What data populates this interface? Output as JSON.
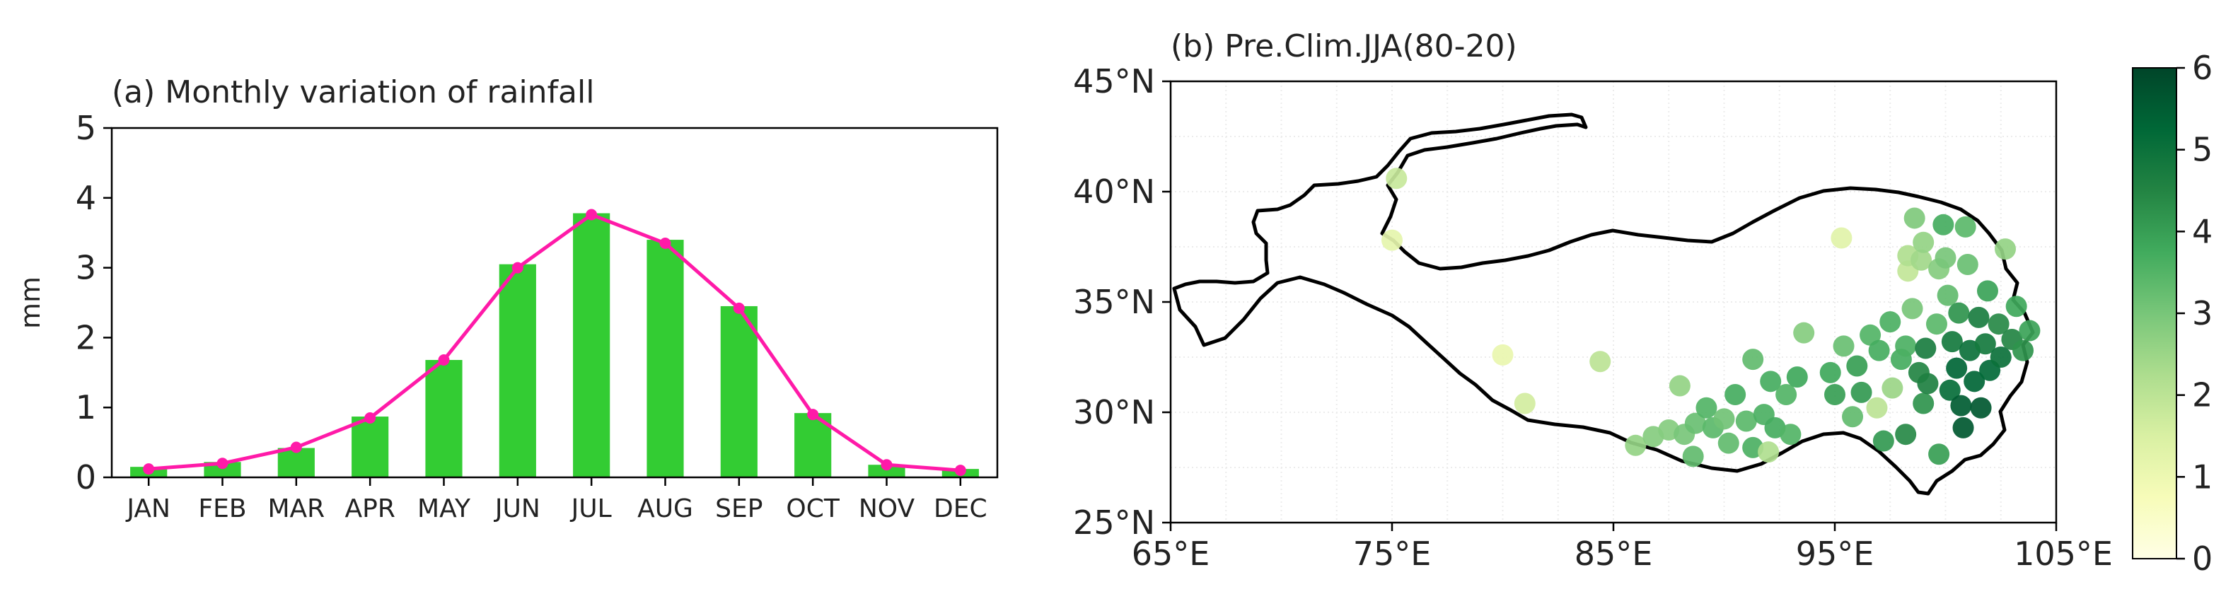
{
  "chart_data": [
    {
      "type": "bar",
      "title": "(a) Monthly variation of rainfall",
      "xlabel": "",
      "ylabel": "mm",
      "ylim": [
        0,
        5
      ],
      "yticks": [
        "0",
        "1",
        "2",
        "3",
        "4",
        "5"
      ],
      "categories": [
        "JAN",
        "FEB",
        "MAR",
        "APR",
        "MAY",
        "JUN",
        "JUL",
        "AUG",
        "SEP",
        "OCT",
        "NOV",
        "DEC"
      ],
      "series": [
        {
          "values": [
            0.15,
            0.22,
            0.42,
            0.87,
            1.68,
            3.05,
            3.78,
            3.4,
            2.45,
            0.92,
            0.18,
            0.12
          ],
          "color": "#33cc33",
          "kind": "bar"
        },
        {
          "values": [
            0.12,
            0.2,
            0.43,
            0.85,
            1.68,
            3.0,
            3.76,
            3.35,
            2.42,
            0.9,
            0.18,
            0.1
          ],
          "color": "#ff1aa8",
          "kind": "line"
        }
      ],
      "grid": false
    },
    {
      "type": "scatter",
      "title": "(b) Pre.Clim.JJA(80-20)",
      "xlim": [
        65,
        105
      ],
      "ylim": [
        25,
        45
      ],
      "xticks": [
        "65°E",
        "75°E",
        "85°E",
        "95°E",
        "105°E"
      ],
      "yticks": [
        "25°N",
        "30°N",
        "35°N",
        "40°N",
        "45°N"
      ],
      "colorbar": {
        "min": 0,
        "max": 6,
        "ticks": [
          "0",
          "1",
          "2",
          "3",
          "4",
          "5",
          "6"
        ],
        "colormap": "YlGn"
      },
      "grid": true,
      "points": [
        [
          75.2,
          40.6,
          1.8
        ],
        [
          75.0,
          37.8,
          1.2
        ],
        [
          80.0,
          32.6,
          1.1
        ],
        [
          81.0,
          30.4,
          1.6
        ],
        [
          84.4,
          32.3,
          2.0
        ],
        [
          86.0,
          28.5,
          2.6
        ],
        [
          86.8,
          28.9,
          2.8
        ],
        [
          87.5,
          29.2,
          2.8
        ],
        [
          88.2,
          29.0,
          3.0
        ],
        [
          88.0,
          31.2,
          2.6
        ],
        [
          88.7,
          29.5,
          3.2
        ],
        [
          88.6,
          28.0,
          3.3
        ],
        [
          89.2,
          30.2,
          3.5
        ],
        [
          89.5,
          29.3,
          3.4
        ],
        [
          90.0,
          29.7,
          3.1
        ],
        [
          90.2,
          28.6,
          3.3
        ],
        [
          90.5,
          30.8,
          3.7
        ],
        [
          91.0,
          29.6,
          3.4
        ],
        [
          91.3,
          32.4,
          3.3
        ],
        [
          91.3,
          28.4,
          3.6
        ],
        [
          91.8,
          29.9,
          3.6
        ],
        [
          92.0,
          28.2,
          2.2
        ],
        [
          92.1,
          31.4,
          3.7
        ],
        [
          92.3,
          29.3,
          3.7
        ],
        [
          92.8,
          30.8,
          3.5
        ],
        [
          93.0,
          29.0,
          3.5
        ],
        [
          93.3,
          31.6,
          3.8
        ],
        [
          93.6,
          33.6,
          2.8
        ],
        [
          94.8,
          31.8,
          3.8
        ],
        [
          95.0,
          30.8,
          4.0
        ],
        [
          95.4,
          33.0,
          3.2
        ],
        [
          95.3,
          37.9,
          1.3
        ],
        [
          95.8,
          29.8,
          3.3
        ],
        [
          96.0,
          32.1,
          4.0
        ],
        [
          96.2,
          30.9,
          4.1
        ],
        [
          96.6,
          33.5,
          3.5
        ],
        [
          96.9,
          30.2,
          2.0
        ],
        [
          97.0,
          32.8,
          3.7
        ],
        [
          97.2,
          28.7,
          4.1
        ],
        [
          97.6,
          31.1,
          2.5
        ],
        [
          97.5,
          34.1,
          3.6
        ],
        [
          98.0,
          32.4,
          3.7
        ],
        [
          98.2,
          29.0,
          4.4
        ],
        [
          98.2,
          33.0,
          3.6
        ],
        [
          98.3,
          36.4,
          1.9
        ],
        [
          98.3,
          37.1,
          2.2
        ],
        [
          98.5,
          34.7,
          3.0
        ],
        [
          98.6,
          38.8,
          2.9
        ],
        [
          98.8,
          31.8,
          4.5
        ],
        [
          98.9,
          36.9,
          2.4
        ],
        [
          99.0,
          30.4,
          4.2
        ],
        [
          99.1,
          32.9,
          4.7
        ],
        [
          99.2,
          31.3,
          4.6
        ],
        [
          99.6,
          34.0,
          3.4
        ],
        [
          99.7,
          28.1,
          4.0
        ],
        [
          99.7,
          36.5,
          2.8
        ],
        [
          99.9,
          38.5,
          3.7
        ],
        [
          100.1,
          35.3,
          3.3
        ],
        [
          100.2,
          31.0,
          5.1
        ],
        [
          100.3,
          33.2,
          4.8
        ],
        [
          100.5,
          32.0,
          5.3
        ],
        [
          100.6,
          34.5,
          4.2
        ],
        [
          100.7,
          30.3,
          5.5
        ],
        [
          100.8,
          29.3,
          5.6
        ],
        [
          101.0,
          36.7,
          3.2
        ],
        [
          101.1,
          32.8,
          5.0
        ],
        [
          101.3,
          31.4,
          5.3
        ],
        [
          101.5,
          34.3,
          4.7
        ],
        [
          101.6,
          30.2,
          5.6
        ],
        [
          101.8,
          33.1,
          4.8
        ],
        [
          101.9,
          35.5,
          3.9
        ],
        [
          102.0,
          31.9,
          5.2
        ],
        [
          102.4,
          34.0,
          4.4
        ],
        [
          102.5,
          32.5,
          5.0
        ],
        [
          102.7,
          37.4,
          2.6
        ],
        [
          103.0,
          33.3,
          4.5
        ],
        [
          103.2,
          34.8,
          3.8
        ],
        [
          103.5,
          32.8,
          4.2
        ],
        [
          103.8,
          33.7,
          3.9
        ],
        [
          99.0,
          37.7,
          2.6
        ],
        [
          100.0,
          37.0,
          3.0
        ],
        [
          100.9,
          38.4,
          3.4
        ]
      ]
    }
  ]
}
